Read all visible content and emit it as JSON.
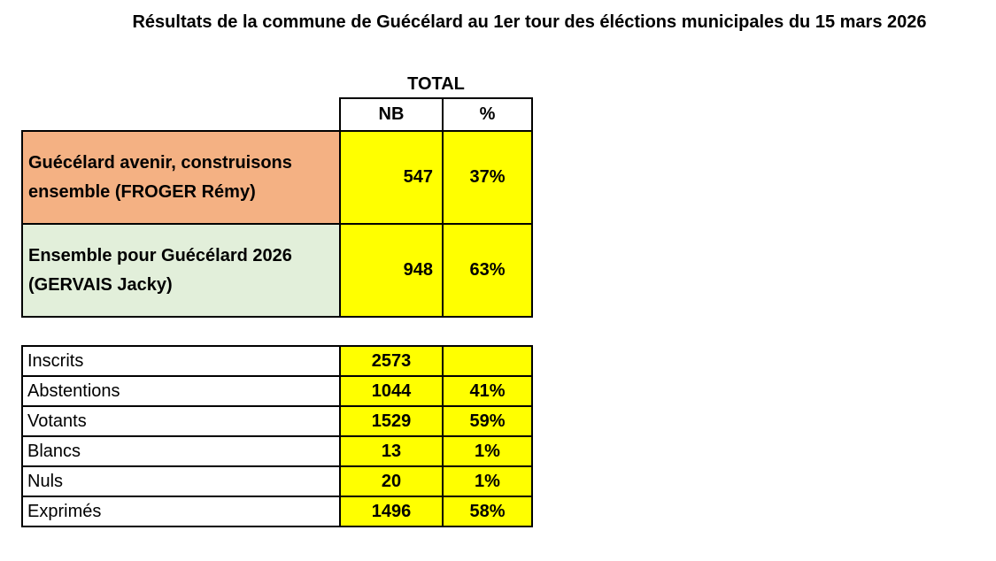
{
  "header": {
    "title": "Résultats de la commune de Guécélard au 1er tour des éléctions municipales du 15 mars 2026"
  },
  "results_table": {
    "group_header": "TOTAL",
    "columns": [
      "NB",
      "%"
    ],
    "rows": [
      [
        "Guécélard avenir, construisons ensemble (FROGER Rémy)",
        "547",
        "37%"
      ],
      [
        "Ensemble pour Guécélard 2026 (GERVAIS Jacky)",
        "948",
        "63%"
      ]
    ]
  },
  "turnout_table": {
    "rows": [
      [
        "Inscrits",
        "2573"
      ],
      [
        "Abstentions",
        "1044",
        "41%"
      ],
      [
        "Votants",
        "1529",
        "59%"
      ],
      [
        "Blancs",
        "13",
        "1%"
      ],
      [
        "Nuls",
        "20",
        "1%"
      ],
      [
        "Exprimés",
        "1496",
        "58%"
      ]
    ]
  }
}
